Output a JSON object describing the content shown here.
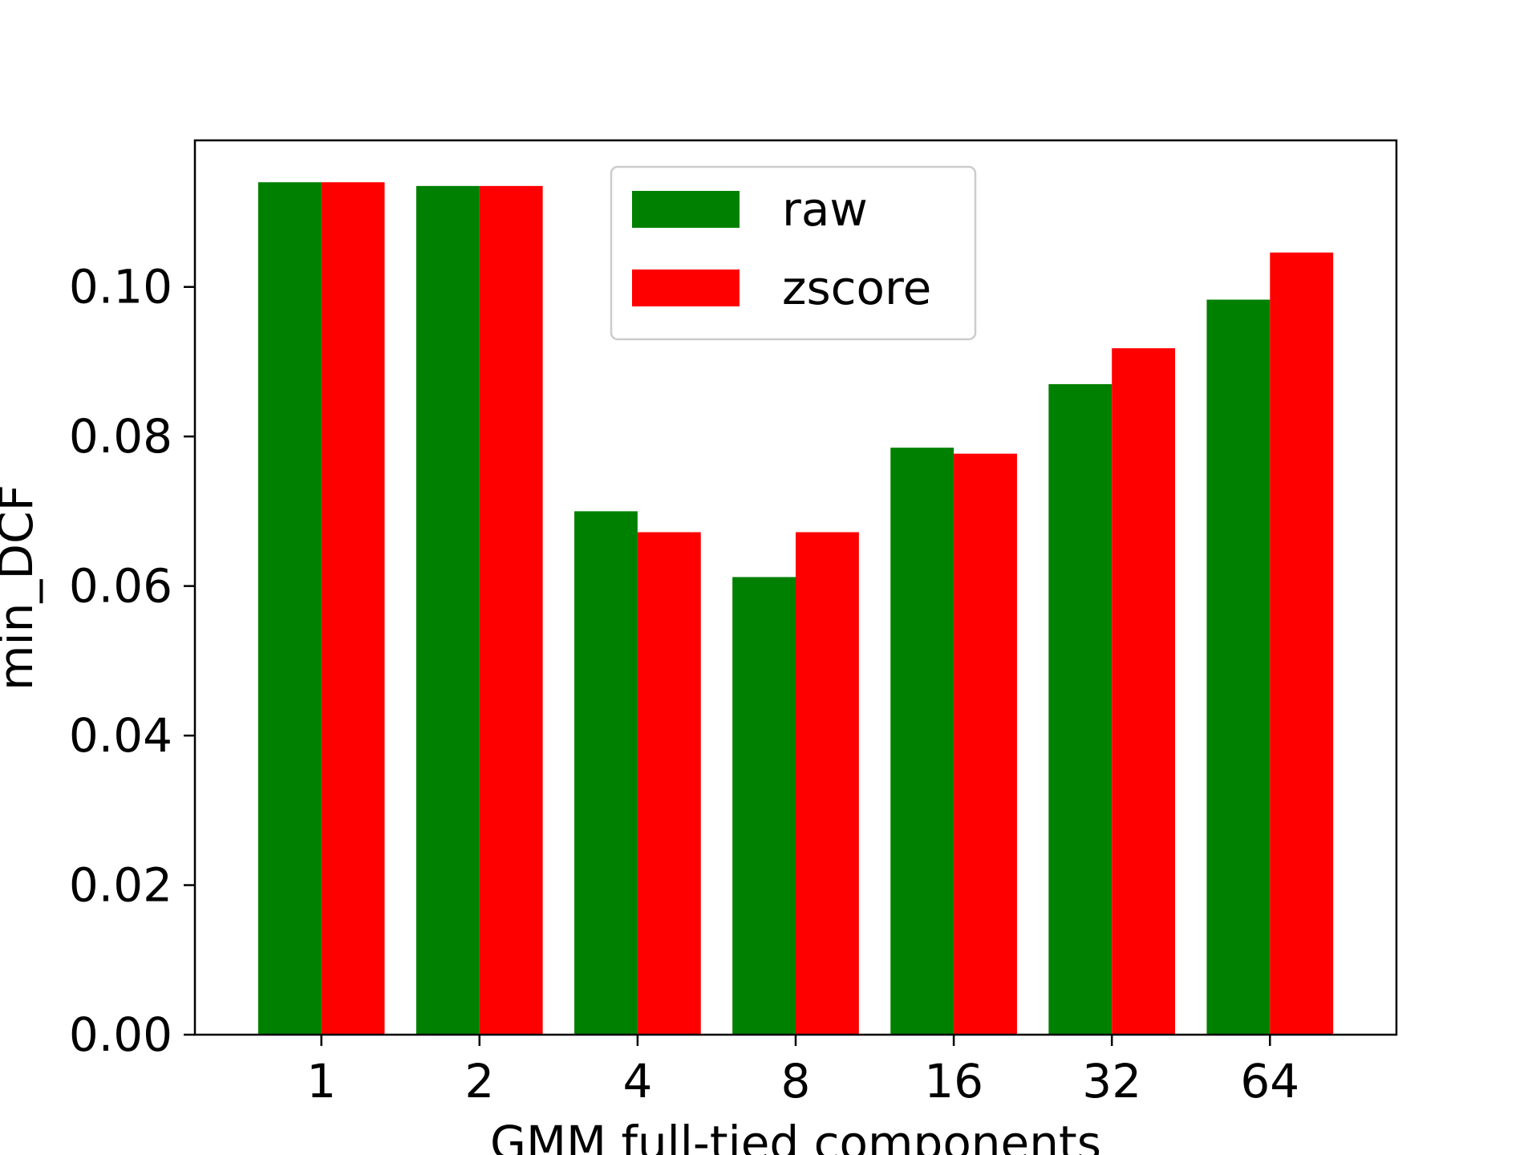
{
  "chart_data": {
    "type": "bar",
    "title": "",
    "xlabel": "GMM full-tied components",
    "ylabel": "min_DCF",
    "categories": [
      "1",
      "2",
      "4",
      "8",
      "16",
      "32",
      "64"
    ],
    "series": [
      {
        "name": "raw",
        "color": "#008000",
        "values": [
          0.114,
          0.1135,
          0.07,
          0.0612,
          0.0785,
          0.087,
          0.0983
        ]
      },
      {
        "name": "zscore",
        "color": "#ff0000",
        "values": [
          0.114,
          0.1135,
          0.0672,
          0.0672,
          0.0777,
          0.0918,
          0.1046
        ]
      }
    ],
    "ylim": [
      0,
      0.1196
    ],
    "yticks": [
      "0.00",
      "0.02",
      "0.04",
      "0.06",
      "0.08",
      "0.10"
    ],
    "legend_position": "top-center",
    "grid": false
  }
}
